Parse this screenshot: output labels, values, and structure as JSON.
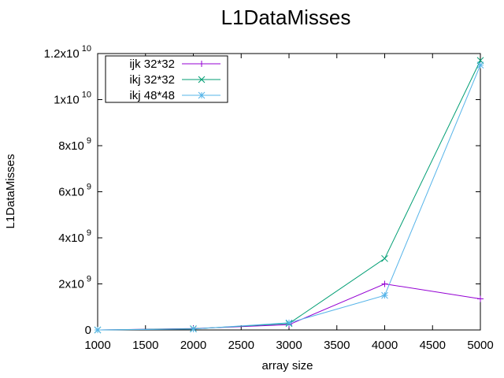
{
  "chart_data": {
    "type": "line",
    "title": "L1DataMisses",
    "xlabel": "array size",
    "ylabel": "L1DataMisses",
    "xlim": [
      1000,
      5000
    ],
    "ylim": [
      0,
      12000000000
    ],
    "x_ticks": [
      1000,
      1500,
      2000,
      2500,
      3000,
      3500,
      4000,
      4500,
      5000
    ],
    "y_ticks": [
      {
        "value": 0,
        "mantissa": "0",
        "exp": ""
      },
      {
        "value": 2000000000,
        "mantissa": "2x10",
        "exp": "9"
      },
      {
        "value": 4000000000,
        "mantissa": "4x10",
        "exp": "9"
      },
      {
        "value": 6000000000,
        "mantissa": "6x10",
        "exp": "9"
      },
      {
        "value": 8000000000,
        "mantissa": "8x10",
        "exp": "9"
      },
      {
        "value": 10000000000,
        "mantissa": "1x10",
        "exp": "10"
      },
      {
        "value": 12000000000,
        "mantissa": "1.2x10",
        "exp": "10"
      }
    ],
    "grid": false,
    "legend_position": "top-left",
    "series": [
      {
        "name": "ijk 32*32",
        "color": "#9400d3",
        "marker": "plus",
        "x": [
          1000,
          2000,
          3000,
          4000,
          5000
        ],
        "y": [
          0,
          60000000,
          230000000,
          2000000000,
          1350000000
        ]
      },
      {
        "name": "ikj 32*32",
        "color": "#009e73",
        "marker": "cross",
        "x": [
          1000,
          2000,
          3000,
          4000,
          5000
        ],
        "y": [
          0,
          50000000,
          280000000,
          3100000000,
          11700000000
        ]
      },
      {
        "name": "ikj 48*48",
        "color": "#56b4e9",
        "marker": "star",
        "x": [
          1000,
          2000,
          3000,
          4000,
          5000
        ],
        "y": [
          0,
          40000000,
          310000000,
          1500000000,
          11500000000
        ]
      }
    ]
  }
}
